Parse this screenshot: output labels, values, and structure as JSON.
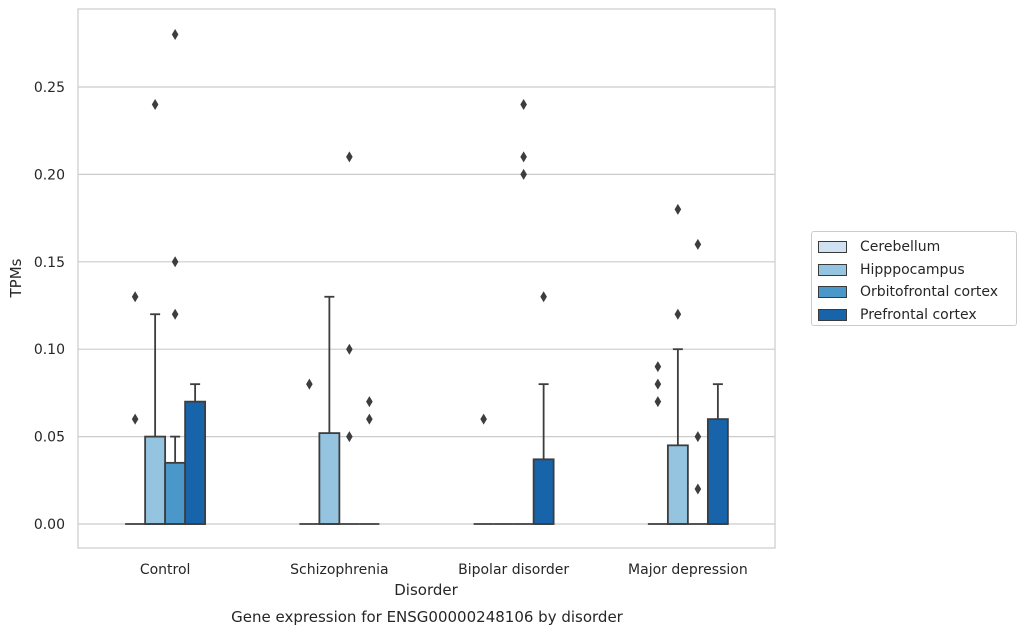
{
  "chart_data": {
    "type": "box",
    "title": "Gene expression for ENSG00000248106 by disorder",
    "xlabel": "Disorder",
    "ylabel": "TPMs",
    "ylim": [
      -0.014,
      0.294
    ],
    "yticks": [
      0.0,
      0.05,
      0.1,
      0.15,
      0.2,
      0.25
    ],
    "ytick_labels": [
      "0.00",
      "0.05",
      "0.10",
      "0.15",
      "0.20",
      "0.25"
    ],
    "grid": "horizontal",
    "legend_position": "right",
    "categories": [
      "Control",
      "Schizophrenia",
      "Bipolar disorder",
      "Major depression"
    ],
    "series": [
      {
        "name": "Cerebellum",
        "color": "#d0e1f2",
        "boxes": [
          {
            "q1": 0,
            "median": 0,
            "q3": 0,
            "whisker_low": 0,
            "whisker_high": 0,
            "outliers": [
              0.06,
              0.13
            ]
          },
          {
            "q1": 0,
            "median": 0,
            "q3": 0,
            "whisker_low": 0,
            "whisker_high": 0,
            "outliers": [
              0.08
            ]
          },
          {
            "q1": 0,
            "median": 0,
            "q3": 0,
            "whisker_low": 0,
            "whisker_high": 0,
            "outliers": [
              0.06
            ]
          },
          {
            "q1": 0,
            "median": 0,
            "q3": 0,
            "whisker_low": 0,
            "whisker_high": 0,
            "outliers": [
              0.07,
              0.08,
              0.09
            ]
          }
        ]
      },
      {
        "name": "Hipppocampus",
        "color": "#94c4df",
        "boxes": [
          {
            "q1": 0,
            "median": 0,
            "q3": 0.05,
            "whisker_low": 0,
            "whisker_high": 0.12,
            "outliers": [
              0.24
            ]
          },
          {
            "q1": 0,
            "median": 0,
            "q3": 0.052,
            "whisker_low": 0,
            "whisker_high": 0.13,
            "outliers": []
          },
          {
            "q1": 0,
            "median": 0,
            "q3": 0,
            "whisker_low": 0,
            "whisker_high": 0,
            "outliers": []
          },
          {
            "q1": 0,
            "median": 0,
            "q3": 0.045,
            "whisker_low": 0,
            "whisker_high": 0.1,
            "outliers": [
              0.12,
              0.18
            ]
          }
        ]
      },
      {
        "name": "Orbitofrontal cortex",
        "color": "#4a98c9",
        "boxes": [
          {
            "q1": 0,
            "median": 0,
            "q3": 0.035,
            "whisker_low": 0,
            "whisker_high": 0.05,
            "outliers": [
              0.12,
              0.15,
              0.28
            ]
          },
          {
            "q1": 0,
            "median": 0,
            "q3": 0,
            "whisker_low": 0,
            "whisker_high": 0,
            "outliers": [
              0.05,
              0.1,
              0.21
            ]
          },
          {
            "q1": 0,
            "median": 0,
            "q3": 0,
            "whisker_low": 0,
            "whisker_high": 0,
            "outliers": [
              0.2,
              0.21,
              0.24
            ]
          },
          {
            "q1": 0,
            "median": 0,
            "q3": 0,
            "whisker_low": 0,
            "whisker_high": 0,
            "outliers": [
              0.02,
              0.05,
              0.16
            ]
          }
        ]
      },
      {
        "name": "Prefrontal cortex",
        "color": "#1764ab",
        "boxes": [
          {
            "q1": 0,
            "median": 0,
            "q3": 0.07,
            "whisker_low": 0,
            "whisker_high": 0.08,
            "outliers": []
          },
          {
            "q1": 0,
            "median": 0,
            "q3": 0,
            "whisker_low": 0,
            "whisker_high": 0,
            "outliers": [
              0.06,
              0.07
            ]
          },
          {
            "q1": 0,
            "median": 0,
            "q3": 0.037,
            "whisker_low": 0,
            "whisker_high": 0.08,
            "outliers": [
              0.13
            ]
          },
          {
            "q1": 0,
            "median": 0,
            "q3": 0.06,
            "whisker_low": 0,
            "whisker_high": 0.08,
            "outliers": []
          }
        ]
      }
    ]
  }
}
